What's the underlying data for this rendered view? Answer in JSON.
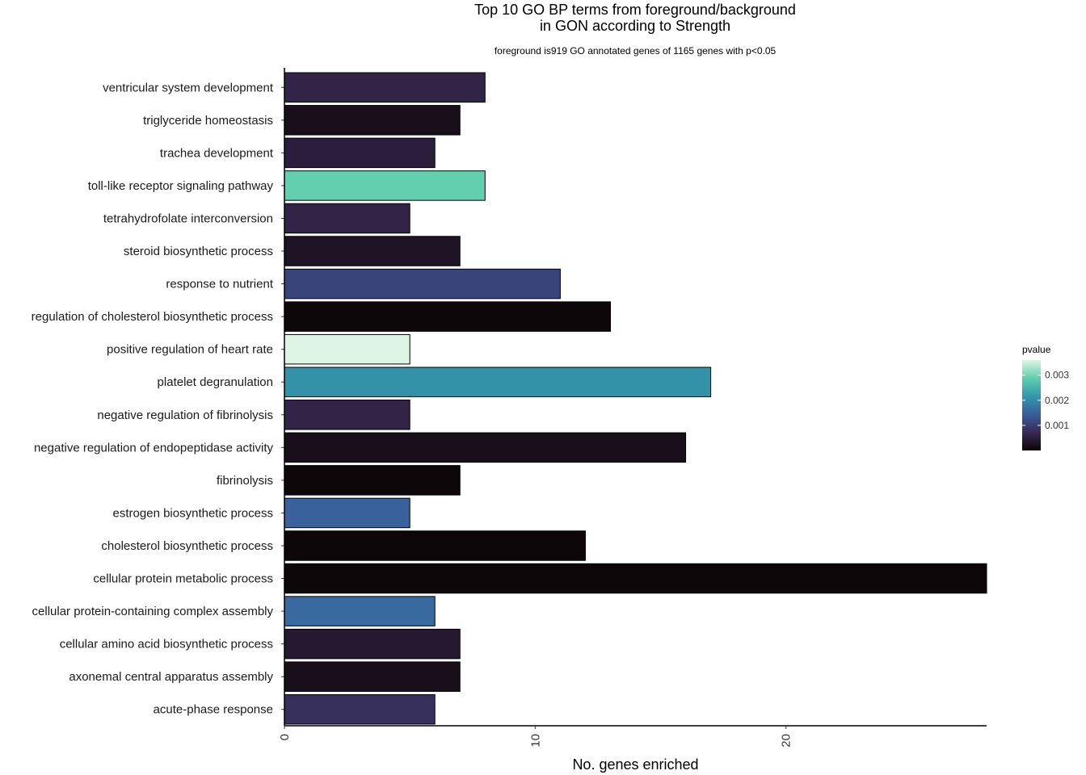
{
  "chart_data": {
    "type": "bar",
    "orientation": "horizontal",
    "title": "Top 10 GO BP terms from foreground/background",
    "title_line2": "in GON according to Strength",
    "subtitle": "foreground is919 GO annotated genes of 1165 genes with p<0.05",
    "xlabel": "No. genes enriched",
    "ylabel": "",
    "xlim": [
      0,
      28
    ],
    "x_ticks": [
      0,
      10,
      20
    ],
    "grid": false,
    "legend": {
      "title": "pvalue",
      "placement": "right",
      "range": [
        0,
        0.0036
      ],
      "ticks": [
        0.001,
        0.002,
        0.003
      ],
      "tick_labels": [
        "0.001",
        "0.002",
        "0.003"
      ],
      "colors": [
        "#0b0405",
        "#382a54",
        "#395d9c",
        "#3497a9",
        "#60ceac",
        "#def5e5"
      ]
    },
    "categories": [
      "ventricular system development",
      "triglyceride homeostasis",
      "trachea development",
      "toll-like receptor signaling pathway",
      "tetrahydrofolate interconversion",
      "steroid biosynthetic process",
      "response to nutrient",
      "regulation of cholesterol biosynthetic process",
      "positive regulation of heart rate",
      "platelet degranulation",
      "negative regulation of fibrinolysis",
      "negative regulation of endopeptidase activity",
      "fibrinolysis",
      "estrogen biosynthetic process",
      "cholesterol biosynthetic process",
      "cellular protein metabolic process",
      "cellular protein-containing complex assembly",
      "cellular amino acid biosynthetic process",
      "axonemal central apparatus assembly",
      "acute-phase response"
    ],
    "values": [
      8,
      7,
      6,
      8,
      5,
      7,
      11,
      13,
      5,
      17,
      5,
      16,
      7,
      5,
      12,
      28,
      6,
      7,
      7,
      6
    ],
    "pvalues": [
      0.0006,
      0.0002,
      0.0005,
      0.0029,
      0.0006,
      0.0003,
      0.0011,
      5e-05,
      0.0036,
      0.0021,
      0.0006,
      0.0002,
      5e-05,
      0.0015,
      5e-05,
      5e-05,
      0.0016,
      0.0004,
      0.0002,
      0.0008
    ]
  }
}
